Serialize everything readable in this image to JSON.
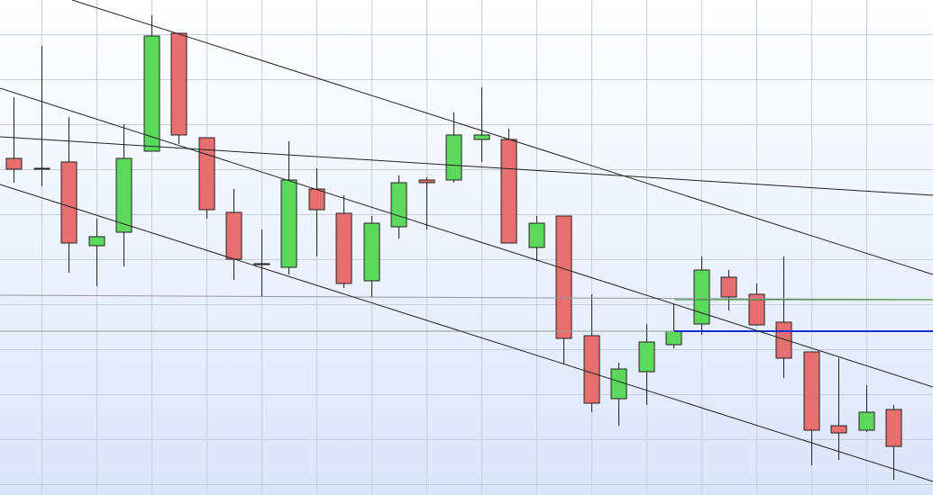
{
  "chart_data": {
    "type": "candlestick",
    "categories": [
      null,
      null,
      null,
      null,
      null,
      null,
      null,
      null,
      null,
      null,
      null,
      null,
      null,
      null,
      null,
      null,
      null,
      null,
      null,
      null,
      null,
      null,
      null,
      null,
      null,
      null,
      null,
      null,
      null,
      null,
      null,
      null,
      null
    ],
    "open": [
      374,
      363,
      370,
      277,
      292,
      382,
      513,
      397,
      314,
      257,
      253,
      340,
      313,
      238,
      298,
      350,
      350,
      395,
      395,
      275,
      310,
      177,
      107,
      137,
      167,
      190,
      242,
      223,
      192,
      159,
      77,
      72,
      95
    ],
    "high": [
      442,
      499,
      420,
      307,
      412,
      533,
      513,
      397,
      340,
      295,
      393,
      363,
      333,
      310,
      355,
      353,
      425,
      453,
      407,
      310,
      310,
      223,
      147,
      190,
      212,
      265,
      250,
      235,
      265,
      159,
      152,
      122,
      100
    ],
    "low": [
      347,
      343,
      247,
      232,
      254,
      382,
      390,
      307,
      239,
      220,
      245,
      265,
      230,
      220,
      285,
      295,
      347,
      370,
      280,
      260,
      145,
      92,
      77,
      100,
      163,
      178,
      205,
      188,
      130,
      33,
      39,
      70,
      17
    ],
    "close": [
      362,
      363,
      280,
      287,
      374,
      510,
      400,
      317,
      262,
      257,
      350,
      317,
      235,
      302,
      347,
      347,
      400,
      400,
      280,
      302,
      174,
      102,
      140,
      170,
      182,
      250,
      220,
      189,
      152,
      72,
      69,
      92,
      54
    ],
    "up_color": "#5cd85c",
    "down_color": "#e76f6f",
    "ylim": [
      0,
      550
    ],
    "yticks": [
      12,
      62,
      112,
      162,
      212,
      262,
      312,
      362,
      412,
      462,
      512
    ],
    "grid": true
  }
}
